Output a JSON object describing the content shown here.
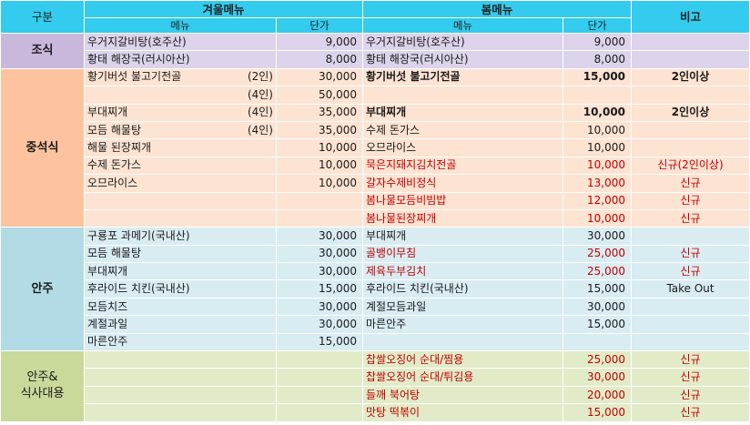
{
  "header": {
    "category": "구분",
    "winter_menu": "겨울메뉴",
    "spring_menu": "봄메뉴",
    "notes": "비고",
    "menu": "메뉴",
    "price": "단가"
  },
  "colors": {
    "header_bg": "#33ccee",
    "breakfast_cat": "#c9b8dc",
    "breakfast_cell": "#ddd3ea",
    "lunch_cat": "#fcc39e",
    "lunch_cell": "#fde3d2",
    "snack_cat": "#b2dbe5",
    "snack_cell": "#d9ecf2",
    "meal_cat": "#c8d99a",
    "meal_cell": "#e2ebc8",
    "red_text": "#c00000"
  },
  "sections": [
    {
      "category": "조식",
      "rows": [
        {
          "w_menu": "우거지갈비탕(호주산)",
          "w_sp": "",
          "w_price": "9,000",
          "s_menu": "우거지갈비탕(호주산)",
          "s_price": "9,000",
          "note": ""
        },
        {
          "w_menu": "황태 해장국(러시아산)",
          "w_sp": "",
          "w_price": "8,000",
          "s_menu": "황태 해장국(러시아산)",
          "s_price": "8,000",
          "note": ""
        }
      ]
    },
    {
      "category": "중석식",
      "rows": [
        {
          "w_menu": "황기버섯 불고기전골",
          "w_sp": "(2인)",
          "w_price": "30,000",
          "s_menu": "황기버섯 불고기전골",
          "s_price": "15,000",
          "note": "2인이상",
          "bold": true
        },
        {
          "w_menu": "",
          "w_sp": "(4인)",
          "w_price": "50,000",
          "s_menu": "",
          "s_price": "",
          "note": ""
        },
        {
          "w_menu": "부대찌개",
          "w_sp": "(4인)",
          "w_price": "35,000",
          "s_menu": "부대찌개",
          "s_price": "10,000",
          "note": "2인이상",
          "bold": true
        },
        {
          "w_menu": "모듬 해물탕",
          "w_sp": "(4인)",
          "w_price": "35,000",
          "s_menu": "수제 돈가스",
          "s_price": "10,000",
          "note": ""
        },
        {
          "w_menu": "해물 된장찌개",
          "w_sp": "",
          "w_price": "10,000",
          "s_menu": "오므라이스",
          "s_price": "10,000",
          "note": ""
        },
        {
          "w_menu": "수제 돈가스",
          "w_sp": "",
          "w_price": "10,000",
          "s_menu": "묵은지돼지김치전골",
          "s_price": "10,000",
          "note": "신규(2인이상)",
          "red": true
        },
        {
          "w_menu": "오므라이스",
          "w_sp": "",
          "w_price": "10,000",
          "s_menu": "갈자수제비정식",
          "s_price": "13,000",
          "note": "신규",
          "red": true
        },
        {
          "w_menu": "",
          "w_sp": "",
          "w_price": "",
          "s_menu": "봄나물모듬비빔밥",
          "s_price": "12,000",
          "note": "신규",
          "red": true
        },
        {
          "w_menu": "",
          "w_sp": "",
          "w_price": "",
          "s_menu": "봄나물된장찌개",
          "s_price": "10,000",
          "note": "신규",
          "red": true
        }
      ]
    },
    {
      "category": "안주",
      "rows": [
        {
          "w_menu": "구룡포 과메기(국내산)",
          "w_sp": "",
          "w_price": "30,000",
          "s_menu": "부대찌개",
          "s_price": "30,000",
          "note": ""
        },
        {
          "w_menu": "모듬 해물탕",
          "w_sp": "",
          "w_price": "30,000",
          "s_menu": "골뱅이무침",
          "s_price": "25,000",
          "note": "신규",
          "red": true
        },
        {
          "w_menu": "부대찌개",
          "w_sp": "",
          "w_price": "30,000",
          "s_menu": "제육두부김치",
          "s_price": "25,000",
          "note": "신규",
          "red": true
        },
        {
          "w_menu": "후라이드 치킨(국내산)",
          "w_sp": "",
          "w_price": "15,000",
          "s_menu": "후라이드 치킨(국내산)",
          "s_price": "15,000",
          "note": "Take Out"
        },
        {
          "w_menu": "모듬치즈",
          "w_sp": "",
          "w_price": "30,000",
          "s_menu": "계절모듬과일",
          "s_price": "30,000",
          "note": ""
        },
        {
          "w_menu": "계절과일",
          "w_sp": "",
          "w_price": "30,000",
          "s_menu": "마른안주",
          "s_price": "15,000",
          "note": ""
        },
        {
          "w_menu": "마른안주",
          "w_sp": "",
          "w_price": "15,000",
          "s_menu": "",
          "s_price": "",
          "note": ""
        }
      ]
    },
    {
      "category": "안주&\n식사대용",
      "rows": [
        {
          "w_menu": "",
          "w_sp": "",
          "w_price": "",
          "s_menu": "찹쌀오징어 순대/찜용",
          "s_price": "25,000",
          "note": "신규",
          "red": true
        },
        {
          "w_menu": "",
          "w_sp": "",
          "w_price": "",
          "s_menu": "찹쌀오징어 순대/튀김용",
          "s_price": "30,000",
          "note": "신규",
          "red": true
        },
        {
          "w_menu": "",
          "w_sp": "",
          "w_price": "",
          "s_menu": "들깨 북어탕",
          "s_price": "20,000",
          "note": "신규",
          "red": true
        },
        {
          "w_menu": "",
          "w_sp": "",
          "w_price": "",
          "s_menu": "맛탕 떡볶이",
          "s_price": "15,000",
          "note": "신규",
          "red": true
        }
      ]
    }
  ]
}
